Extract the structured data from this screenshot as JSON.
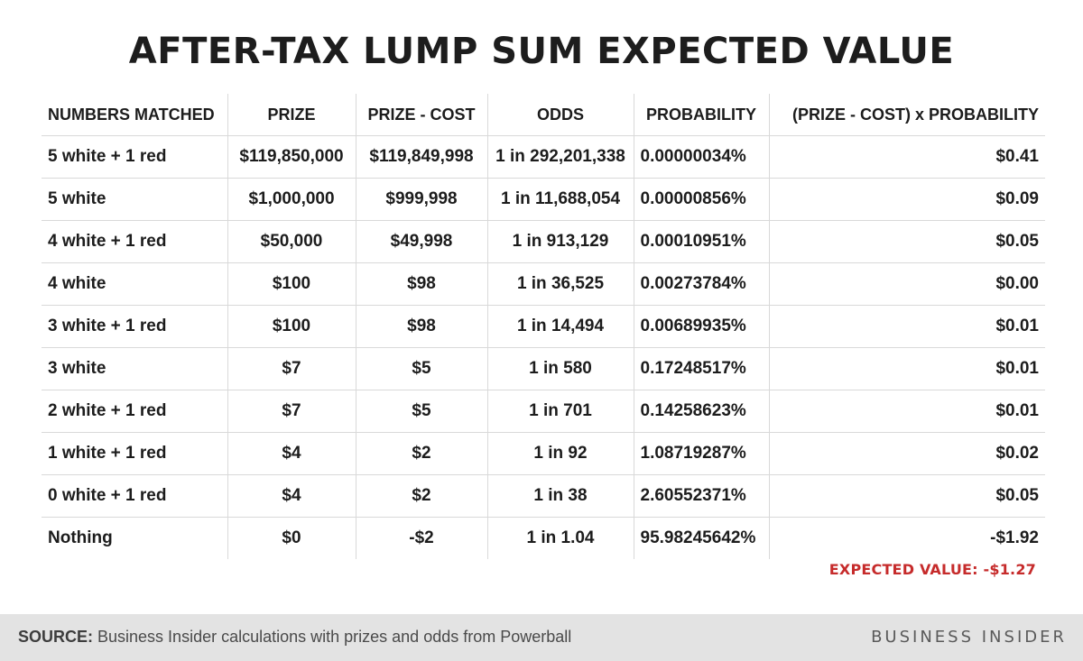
{
  "title": "AFTER-TAX LUMP SUM EXPECTED VALUE",
  "chart_data": {
    "type": "table",
    "title": "AFTER-TAX LUMP SUM EXPECTED VALUE",
    "columns": [
      "NUMBERS MATCHED",
      "PRIZE",
      "PRIZE - COST",
      "ODDS",
      "PROBABILITY",
      "(PRIZE - COST) x PROBABILITY"
    ],
    "rows": [
      [
        "5 white + 1 red",
        "$119,850,000",
        "$119,849,998",
        "1 in 292,201,338",
        "0.00000034%",
        "$0.41"
      ],
      [
        "5 white",
        "$1,000,000",
        "$999,998",
        "1 in 11,688,054",
        "0.00000856%",
        "$0.09"
      ],
      [
        "4 white + 1 red",
        "$50,000",
        "$49,998",
        "1 in 913,129",
        "0.00010951%",
        "$0.05"
      ],
      [
        "4 white",
        "$100",
        "$98",
        "1 in 36,525",
        "0.00273784%",
        "$0.00"
      ],
      [
        "3 white + 1 red",
        "$100",
        "$98",
        "1 in 14,494",
        "0.00689935%",
        "$0.01"
      ],
      [
        "3 white",
        "$7",
        "$5",
        "1 in 580",
        "0.17248517%",
        "$0.01"
      ],
      [
        "2 white + 1 red",
        "$7",
        "$5",
        "1 in 701",
        "0.14258623%",
        "$0.01"
      ],
      [
        "1 white + 1 red",
        "$4",
        "$2",
        "1 in 92",
        "1.08719287%",
        "$0.02"
      ],
      [
        "0 white + 1 red",
        "$4",
        "$2",
        "1 in 38",
        "2.60552371%",
        "$0.05"
      ],
      [
        "Nothing",
        "$0",
        "-$2",
        "1 in 1.04",
        "95.98245642%",
        "-$1.92"
      ]
    ],
    "expected_value": "EXPECTED VALUE: -$1.27"
  },
  "footer": {
    "source_label": "SOURCE:",
    "source_text": " Business Insider calculations with prizes and odds from Powerball",
    "logo": "BUSINESS INSIDER"
  },
  "colors": {
    "expected_value": "#c62b2b",
    "footer_bg": "#e3e3e3",
    "grid": "#d9d9d9"
  }
}
